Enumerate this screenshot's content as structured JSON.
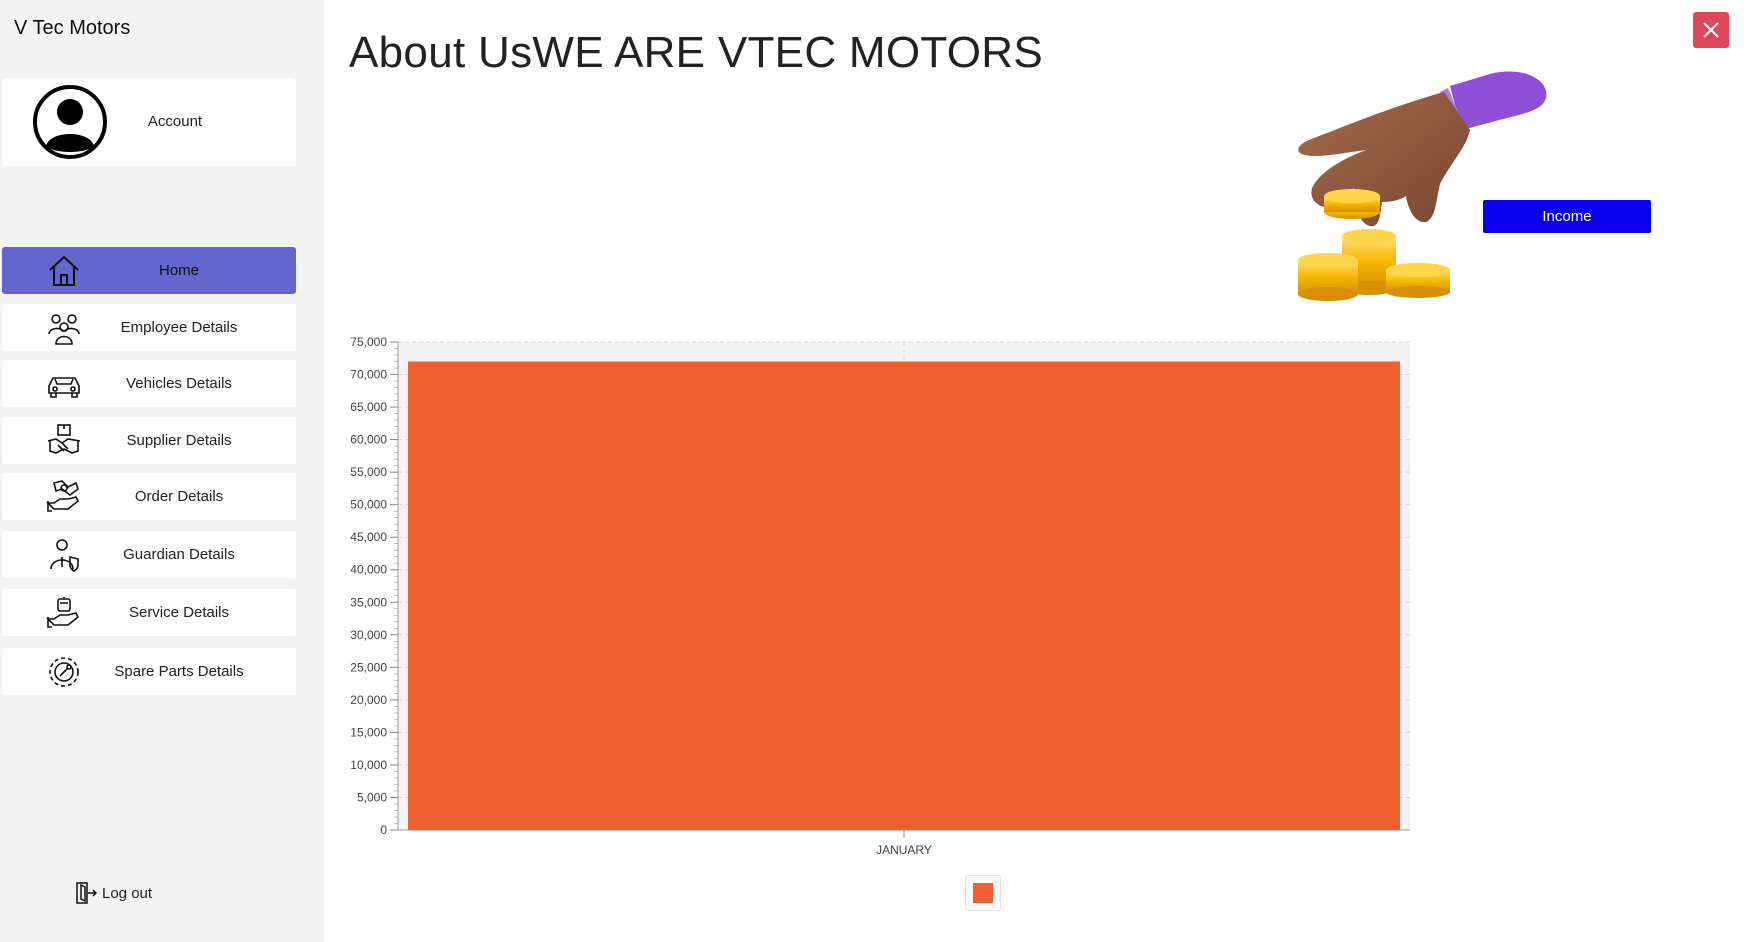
{
  "app": {
    "title": "V Tec Motors"
  },
  "account": {
    "label": "Account",
    "icon": "user-circle-icon"
  },
  "nav": {
    "items": [
      {
        "label": "Home",
        "icon": "home-icon",
        "active": true
      },
      {
        "label": "Employee Details",
        "icon": "employees-icon",
        "active": false
      },
      {
        "label": "Vehicles Details",
        "icon": "car-icon",
        "active": false
      },
      {
        "label": "Supplier Details",
        "icon": "supplier-handshake-icon",
        "active": false
      },
      {
        "label": "Order Details",
        "icon": "order-hand-icon",
        "active": false
      },
      {
        "label": "Guardian Details",
        "icon": "guardian-icon",
        "active": false
      },
      {
        "label": "Service Details",
        "icon": "service-icon",
        "active": false
      },
      {
        "label": "Spare Parts Details",
        "icon": "gear-wrench-icon",
        "active": false
      }
    ]
  },
  "logout": {
    "label": "Log out",
    "icon": "logout-icon"
  },
  "main": {
    "title": "About UsWE ARE VTEC MOTORS",
    "income_button": "Income",
    "illustration": "hand-with-coins-illustration",
    "close_icon": "close-icon"
  },
  "colors": {
    "sidebar_bg": "#f3f3f3",
    "active_nav": "#6366cc",
    "income_button": "#0a00f0",
    "close_button": "#e0455a",
    "bar": "#f05f2f"
  },
  "chart_data": {
    "type": "bar",
    "categories": [
      "JANUARY"
    ],
    "series": [
      {
        "values": [
          72000
        ],
        "color": "#f05f2f"
      }
    ],
    "ylim": [
      0,
      75000
    ],
    "yticks": [
      0,
      5000,
      10000,
      15000,
      20000,
      25000,
      30000,
      35000,
      40000,
      45000,
      50000,
      55000,
      60000,
      65000,
      70000,
      75000
    ],
    "grid": true,
    "legend": "bottom-center"
  }
}
